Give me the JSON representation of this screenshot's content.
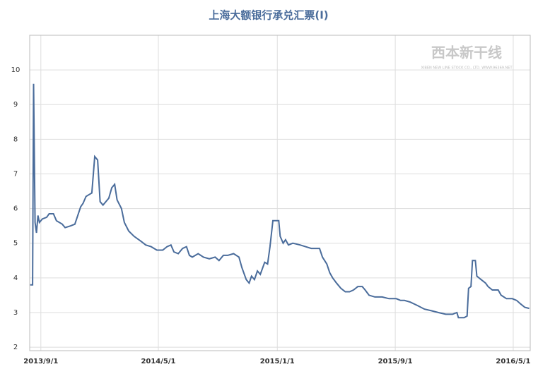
{
  "chart_data": {
    "type": "line",
    "title": "上海大额银行承兑汇票(Ⅰ)",
    "watermark": "西本新干线",
    "watermark_subtitle": "XIBEN NEW LINE STOCK CO., LTD. WWW.96369.NET",
    "xlim": [
      "2013/8/9",
      "2016/6/5"
    ],
    "xticks": [
      "2013/9/1",
      "2014/5/1",
      "2015/1/1",
      "2015/9/1",
      "2016/5/1"
    ],
    "ylim": [
      1.9,
      11
    ],
    "yticks": [
      2,
      3,
      4,
      5,
      6,
      7,
      8,
      9,
      10
    ],
    "grid": true,
    "x": [
      "2013/8/10",
      "2013/8/15",
      "2013/8/17",
      "2013/8/20",
      "2013/8/23",
      "2013/8/26",
      "2013/8/29",
      "2013/9/4",
      "2013/9/13",
      "2013/9/18",
      "2013/9/27",
      "2013/10/3",
      "2013/10/15",
      "2013/10/21",
      "2013/11/1",
      "2013/11/10",
      "2013/11/16",
      "2013/11/22",
      "2013/11/27",
      "2013/12/3",
      "2013/12/15",
      "2013/12/21",
      "2013/12/27",
      "2014/1/1",
      "2014/1/7",
      "2014/1/19",
      "2014/1/25",
      "2014/1/31",
      "2014/2/5",
      "2014/2/14",
      "2014/2/20",
      "2014/3/1",
      "2014/3/12",
      "2014/3/27",
      "2014/4/5",
      "2014/4/16",
      "2014/4/28",
      "2014/5/10",
      "2014/5/19",
      "2014/5/27",
      "2014/6/2",
      "2014/6/11",
      "2014/6/20",
      "2014/6/28",
      "2014/7/4",
      "2014/7/10",
      "2014/7/22",
      "2014/8/2",
      "2014/8/14",
      "2014/8/26",
      "2014/9/3",
      "2014/9/12",
      "2014/9/21",
      "2014/10/3",
      "2014/10/14",
      "2014/10/20",
      "2014/10/29",
      "2014/11/4",
      "2014/11/9",
      "2014/11/15",
      "2014/11/21",
      "2014/11/27",
      "2014/12/6",
      "2014/12/12",
      "2014/12/17",
      "2014/12/23",
      "2015/1/4",
      "2015/1/7",
      "2015/1/13",
      "2015/1/18",
      "2015/1/24",
      "2015/2/2",
      "2015/2/17",
      "2015/2/28",
      "2015/3/12",
      "2015/3/24",
      "2015/3/29",
      "2015/4/4",
      "2015/4/13",
      "2015/4/19",
      "2015/4/25",
      "2015/5/3",
      "2015/5/12",
      "2015/5/21",
      "2015/5/30",
      "2015/6/7",
      "2015/6/16",
      "2015/6/25",
      "2015/7/1",
      "2015/7/9",
      "2015/7/21",
      "2015/8/5",
      "2015/8/19",
      "2015/9/3",
      "2015/9/12",
      "2015/9/20",
      "2015/10/2",
      "2015/10/17",
      "2015/10/31",
      "2015/11/15",
      "2015/11/29",
      "2015/12/14",
      "2015/12/28",
      "2016/1/6",
      "2016/1/9",
      "2016/1/21",
      "2016/1/27",
      "2016/1/30",
      "2016/2/4",
      "2016/2/7",
      "2016/2/13",
      "2016/2/16",
      "2016/2/25",
      "2016/3/5",
      "2016/3/10",
      "2016/3/19",
      "2016/3/31",
      "2016/4/6",
      "2016/4/17",
      "2016/4/29",
      "2016/5/8",
      "2016/5/16",
      "2016/5/25",
      "2016/6/3"
    ],
    "series": [
      {
        "name": "上海大额银行承兑汇票(Ⅰ)",
        "color": "#4a6c9b",
        "values": [
          3.8,
          3.8,
          9.6,
          5.6,
          5.3,
          5.8,
          5.6,
          5.7,
          5.75,
          5.85,
          5.85,
          5.65,
          5.55,
          5.45,
          5.5,
          5.55,
          5.8,
          6.05,
          6.15,
          6.35,
          6.45,
          7.5,
          7.4,
          6.2,
          6.1,
          6.3,
          6.6,
          6.7,
          6.25,
          6.0,
          5.6,
          5.35,
          5.2,
          5.05,
          4.95,
          4.9,
          4.8,
          4.8,
          4.9,
          4.95,
          4.75,
          4.7,
          4.85,
          4.9,
          4.65,
          4.6,
          4.7,
          4.6,
          4.55,
          4.6,
          4.5,
          4.65,
          4.65,
          4.7,
          4.6,
          4.3,
          3.95,
          3.85,
          4.05,
          3.95,
          4.2,
          4.1,
          4.45,
          4.4,
          4.9,
          5.65,
          5.65,
          5.2,
          5.0,
          5.1,
          4.95,
          5.0,
          4.95,
          4.9,
          4.85,
          4.85,
          4.85,
          4.6,
          4.4,
          4.15,
          4.0,
          3.85,
          3.7,
          3.6,
          3.6,
          3.65,
          3.75,
          3.75,
          3.65,
          3.5,
          3.45,
          3.45,
          3.4,
          3.4,
          3.35,
          3.35,
          3.3,
          3.2,
          3.1,
          3.05,
          3.0,
          2.95,
          2.95,
          3.0,
          2.85,
          2.85,
          2.9,
          3.7,
          3.75,
          4.5,
          4.5,
          4.05,
          3.95,
          3.85,
          3.75,
          3.65,
          3.65,
          3.5,
          3.4,
          3.4,
          3.35,
          3.25,
          3.15,
          3.12
        ]
      }
    ]
  }
}
